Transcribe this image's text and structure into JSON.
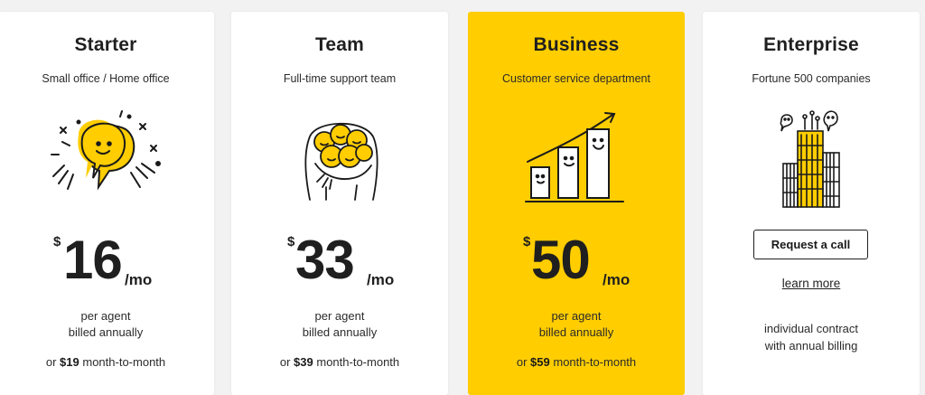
{
  "colors": {
    "highlight": "#ffcd00",
    "card": "#ffffff",
    "text": "#1f1f1f"
  },
  "plans": [
    {
      "name": "Starter",
      "subtitle": "Small office / Home office",
      "illustration": "speech-bubble-face-icon",
      "currency": "$",
      "amount": "16",
      "period": "/mo",
      "per_agent": "per agent",
      "billed": "billed annually",
      "mtm_prefix": "or",
      "mtm_price": "$19",
      "mtm_suffix": "month-to-month"
    },
    {
      "name": "Team",
      "subtitle": "Full-time support team",
      "illustration": "team-group-hug-icon",
      "currency": "$",
      "amount": "33",
      "period": "/mo",
      "per_agent": "per agent",
      "billed": "billed annually",
      "mtm_prefix": "or",
      "mtm_price": "$39",
      "mtm_suffix": "month-to-month"
    },
    {
      "name": "Business",
      "subtitle": "Customer service department",
      "illustration": "growth-bar-chart-icon",
      "currency": "$",
      "amount": "50",
      "period": "/mo",
      "per_agent": "per agent",
      "billed": "billed annually",
      "mtm_prefix": "or",
      "mtm_price": "$59",
      "mtm_suffix": "month-to-month"
    },
    {
      "name": "Enterprise",
      "subtitle": "Fortune 500 companies",
      "illustration": "skyscraper-icon",
      "cta_label": "Request a call",
      "learn_more": "learn more",
      "contract_line1": "individual contract",
      "contract_line2": "with annual billing"
    }
  ]
}
